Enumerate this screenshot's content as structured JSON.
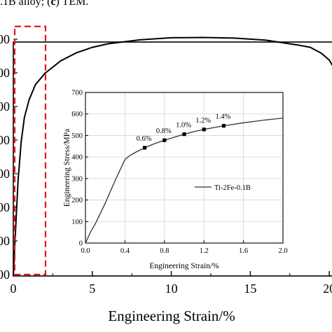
{
  "caption": {
    "pre": ".1B alloy; (",
    "bold": "c",
    "post": ") TEM."
  },
  "chart_data": [
    {
      "type": "line",
      "xlabel": "Engineering Strain/%",
      "ylabel": "",
      "xlim": [
        0,
        21.5
      ],
      "ylim": [
        0,
        900
      ],
      "x_ticks": [
        0,
        5,
        10,
        15,
        20
      ],
      "y_tick_labels": [
        "00",
        "00",
        "00",
        "00",
        "00",
        "00",
        "00",
        "00"
      ],
      "series": [
        {
          "x": [
            0,
            0.12,
            0.3,
            0.5,
            0.7,
            1.0,
            1.4,
            2.0,
            3.0,
            4.0,
            5.0,
            6.0,
            8.0,
            10.0,
            12.0,
            14.0,
            16.0,
            18.0,
            18.8,
            19.5,
            20.0,
            20.3
          ],
          "y": [
            0,
            130,
            320,
            450,
            530,
            590,
            640,
            678,
            720,
            747,
            765,
            777,
            790,
            797,
            798,
            796,
            789,
            773,
            765,
            745,
            722,
            695
          ]
        }
      ],
      "highlight_box": {
        "x": [
          0,
          1.95
        ],
        "y": [
          0,
          835
        ]
      },
      "grid": false
    },
    {
      "type": "line",
      "xlabel": "Engineering Strain/%",
      "ylabel": "Engineering Stress/MPa",
      "xlim": [
        0,
        2.0
      ],
      "ylim": [
        0,
        700
      ],
      "x_ticks": [
        "0.0",
        "0.4",
        "0.8",
        "1.2",
        "1.6",
        "2.0"
      ],
      "y_ticks": [
        "0",
        "100",
        "200",
        "300",
        "400",
        "500",
        "600",
        "700"
      ],
      "grid": true,
      "legend": "right",
      "series": [
        {
          "name": "Ti-2Fe-0.1B",
          "x": [
            0,
            0.02,
            0.05,
            0.1,
            0.2,
            0.3,
            0.4,
            0.45,
            0.5,
            0.6,
            0.7,
            0.8,
            0.9,
            1.0,
            1.1,
            1.2,
            1.3,
            1.4,
            1.5,
            1.6,
            1.7,
            1.8,
            1.9,
            2.0
          ],
          "y": [
            0,
            20,
            50,
            90,
            185,
            290,
            388,
            407,
            420,
            443,
            462,
            478,
            492,
            506,
            518,
            528,
            537,
            545,
            552,
            559,
            565,
            571,
            576,
            581
          ]
        }
      ],
      "markers": [
        {
          "label": "0.6%",
          "x": 0.6,
          "y": 443
        },
        {
          "label": "0.8%",
          "x": 0.8,
          "y": 478
        },
        {
          "label": "1.0%",
          "x": 1.0,
          "y": 506
        },
        {
          "label": "1.2%",
          "x": 1.2,
          "y": 528
        },
        {
          "label": "1.4%",
          "x": 1.4,
          "y": 545
        }
      ]
    }
  ]
}
